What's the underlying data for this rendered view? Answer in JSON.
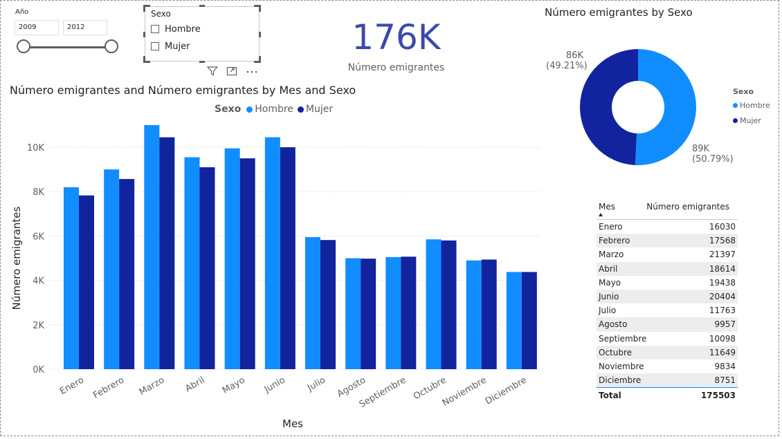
{
  "year_slicer": {
    "title": "Año",
    "from": "2009",
    "to": "2012"
  },
  "sexo_slicer": {
    "title": "Sexo",
    "options": [
      "Hombre",
      "Mujer"
    ]
  },
  "kpi": {
    "value": "176K",
    "label": "Número emigrantes"
  },
  "colors": {
    "hombre": "#118dff",
    "mujer": "#12239e",
    "kpi": "#3a49a8"
  },
  "icons": [
    "filter-icon",
    "focus-mode-icon",
    "more-options-icon"
  ],
  "bar_chart": {
    "title": "Número emigrantes and Número emigrantes by Mes and Sexo"
  },
  "donut_chart": {
    "title": "Número emigrantes by Sexo",
    "legend_title": "Sexo",
    "legend": [
      "Hombre",
      "Mujer"
    ],
    "label_mujer": "86K",
    "pct_mujer": "(49.21%)",
    "label_hombre": "89K",
    "pct_hombre": "(50.79%)"
  },
  "table": {
    "headers": [
      "Mes",
      "Número emigrantes"
    ],
    "rows": [
      [
        "Enero",
        "16030"
      ],
      [
        "Febrero",
        "17568"
      ],
      [
        "Marzo",
        "21397"
      ],
      [
        "Abril",
        "18614"
      ],
      [
        "Mayo",
        "19438"
      ],
      [
        "Junio",
        "20404"
      ],
      [
        "Julio",
        "11763"
      ],
      [
        "Agosto",
        "9957"
      ],
      [
        "Septiembre",
        "10098"
      ],
      [
        "Octubre",
        "11649"
      ],
      [
        "Noviembre",
        "9834"
      ],
      [
        "Diciembre",
        "8751"
      ]
    ],
    "total_label": "Total",
    "total_value": "175503"
  },
  "chart_data": [
    {
      "type": "bar",
      "title": "Número emigrantes and Número emigrantes by Mes and Sexo",
      "xlabel": "Mes",
      "ylabel": "Número emigrantes",
      "legend_title": "Sexo",
      "legend_position": "top-center",
      "grid": true,
      "ylim": [
        0,
        11000
      ],
      "yticks": [
        0,
        2000,
        4000,
        6000,
        8000,
        10000
      ],
      "ytick_labels": [
        "0K",
        "2K",
        "4K",
        "6K",
        "8K",
        "10K"
      ],
      "categories": [
        "Enero",
        "Febrero",
        "Marzo",
        "Abril",
        "Mayo",
        "Junio",
        "Julio",
        "Agosto",
        "Septiembre",
        "Octubre",
        "Noviembre",
        "Diciembre"
      ],
      "series": [
        {
          "name": "Hombre",
          "color": "#118dff",
          "values": [
            8200,
            9000,
            11000,
            9550,
            9950,
            10450,
            5950,
            5000,
            5050,
            5850,
            4900,
            4380
          ]
        },
        {
          "name": "Mujer",
          "color": "#12239e",
          "values": [
            7830,
            8570,
            10450,
            9100,
            9500,
            10000,
            5820,
            4980,
            5070,
            5800,
            4940,
            4380
          ]
        }
      ]
    },
    {
      "type": "pie",
      "title": "Número emigrantes by Sexo",
      "legend_position": "right",
      "labels": [
        "Hombre",
        "Mujer"
      ],
      "values": [
        89140,
        86363
      ],
      "percent": [
        50.79,
        49.21
      ],
      "colors": [
        "#118dff",
        "#12239e"
      ]
    }
  ]
}
